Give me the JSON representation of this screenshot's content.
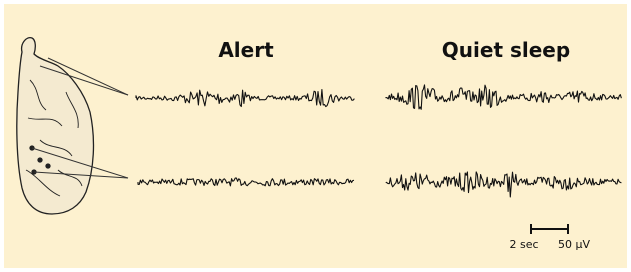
{
  "panels": [
    {
      "label": "Alert"
    },
    {
      "label": "Quiet sleep"
    }
  ],
  "scale_bar": {
    "time": "2 sec",
    "amplitude": "50 μV"
  }
}
